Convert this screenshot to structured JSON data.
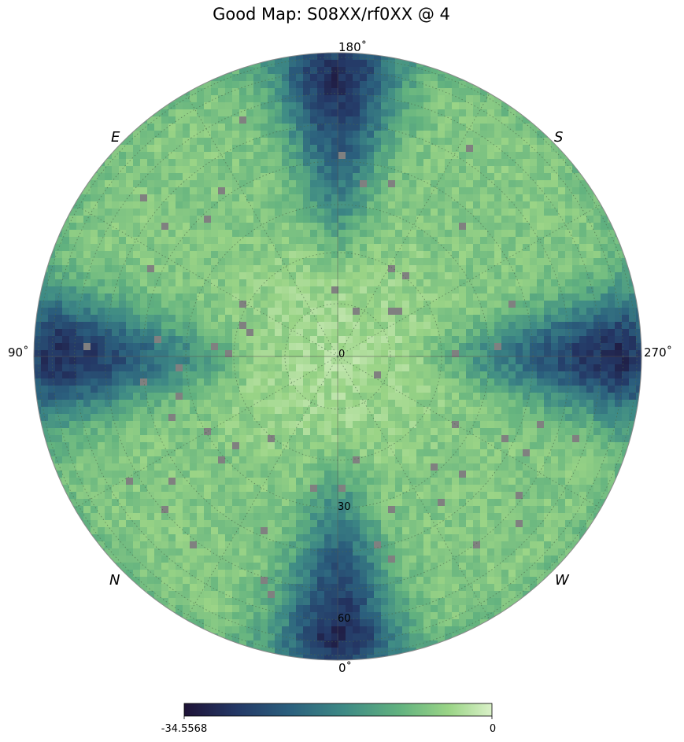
{
  "chart_data": {
    "type": "heatmap",
    "projection": "orthographic polar sky map",
    "title": "Good Map: S08XX/rf0XX @ 4",
    "azimuth_labels": {
      "top": "180˚",
      "right": "270˚",
      "bottom": "0˚",
      "left": "90˚"
    },
    "direction_labels": {
      "upper_left": "E",
      "upper_right": "S",
      "lower_left": "N",
      "lower_right": "W"
    },
    "ring_labels": [
      "0",
      "30",
      "60"
    ],
    "colorbar": {
      "min": -34.5568,
      "max": 0,
      "min_label": "-34.5568",
      "max_label": "0",
      "colormap": [
        "#1e1236",
        "#243866",
        "#2b5f7d",
        "#3e8a85",
        "#62b27f",
        "#9ad486",
        "#daf1c8"
      ]
    },
    "masked_color": "#808080",
    "grid": true,
    "description_levels": {
      "zenith": -4,
      "x_pattern_arms": -28,
      "arm_ends_at_horizon": -33,
      "quadrant_lobes": -8,
      "limb": -14
    }
  }
}
